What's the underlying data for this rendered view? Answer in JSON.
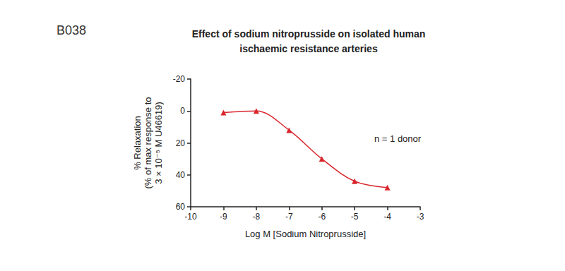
{
  "chart_data": {
    "type": "line",
    "label": "B038",
    "title": "Effect of sodium nitroprusside on isolated human\nischaemic resistance arteries",
    "x_label": "Log M [Sodium Nitroprusside]",
    "y_label": "% Relaxation\n(% of max response to\n3 × 10⁻⁵ M U46619)",
    "annotation": "n = 1 donor",
    "x": [
      -9,
      -8,
      -7,
      -6,
      -5,
      -4
    ],
    "values": [
      1,
      0,
      12,
      30,
      44,
      48
    ],
    "color": "#d9262c",
    "marker": "triangle",
    "line_style": "solid",
    "xlim": [
      -10,
      -3
    ],
    "xticks": [
      -10,
      -9,
      -8,
      -7,
      -6,
      -5,
      -4,
      -3
    ],
    "ylim": [
      -20,
      60
    ],
    "yticks": [
      -20,
      0,
      20,
      40,
      60
    ],
    "grid": false
  }
}
